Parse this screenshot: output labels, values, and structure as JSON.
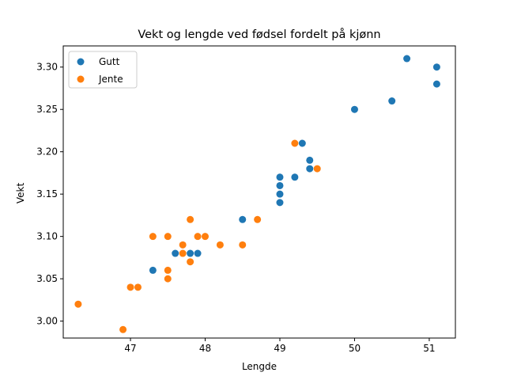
{
  "chart_data": {
    "type": "scatter",
    "title": "Vekt og lengde ved fødsel fordelt på kjønn",
    "xlabel": "Lengde",
    "ylabel": "Vekt",
    "xlim": [
      46.1,
      51.35
    ],
    "ylim": [
      2.98,
      3.325
    ],
    "xticks": [
      47,
      48,
      49,
      50,
      51
    ],
    "xtick_labels": [
      "47",
      "48",
      "49",
      "50",
      "51"
    ],
    "yticks": [
      3.0,
      3.05,
      3.1,
      3.15,
      3.2,
      3.25,
      3.3
    ],
    "ytick_labels": [
      "3.00",
      "3.05",
      "3.10",
      "3.15",
      "3.20",
      "3.25",
      "3.30"
    ],
    "grid": false,
    "legend_position": "top-left",
    "series": [
      {
        "name": "Gutt",
        "color": "#1f77b4",
        "points": [
          [
            47.3,
            3.06
          ],
          [
            47.6,
            3.08
          ],
          [
            47.8,
            3.08
          ],
          [
            47.9,
            3.08
          ],
          [
            48.5,
            3.12
          ],
          [
            49.0,
            3.14
          ],
          [
            49.0,
            3.15
          ],
          [
            49.0,
            3.16
          ],
          [
            49.0,
            3.17
          ],
          [
            49.2,
            3.17
          ],
          [
            49.3,
            3.21
          ],
          [
            49.4,
            3.19
          ],
          [
            49.4,
            3.18
          ],
          [
            50.0,
            3.25
          ],
          [
            50.5,
            3.26
          ],
          [
            50.7,
            3.31
          ],
          [
            51.1,
            3.3
          ],
          [
            51.1,
            3.28
          ]
        ]
      },
      {
        "name": "Jente",
        "color": "#ff7f0e",
        "points": [
          [
            46.3,
            3.02
          ],
          [
            46.9,
            2.99
          ],
          [
            47.0,
            3.04
          ],
          [
            47.1,
            3.04
          ],
          [
            47.3,
            3.1
          ],
          [
            47.5,
            3.1
          ],
          [
            47.5,
            3.06
          ],
          [
            47.5,
            3.05
          ],
          [
            47.7,
            3.09
          ],
          [
            47.7,
            3.08
          ],
          [
            47.8,
            3.12
          ],
          [
            47.8,
            3.07
          ],
          [
            47.9,
            3.1
          ],
          [
            48.0,
            3.1
          ],
          [
            48.2,
            3.09
          ],
          [
            48.5,
            3.09
          ],
          [
            48.7,
            3.12
          ],
          [
            49.2,
            3.21
          ],
          [
            49.5,
            3.18
          ]
        ]
      }
    ]
  }
}
